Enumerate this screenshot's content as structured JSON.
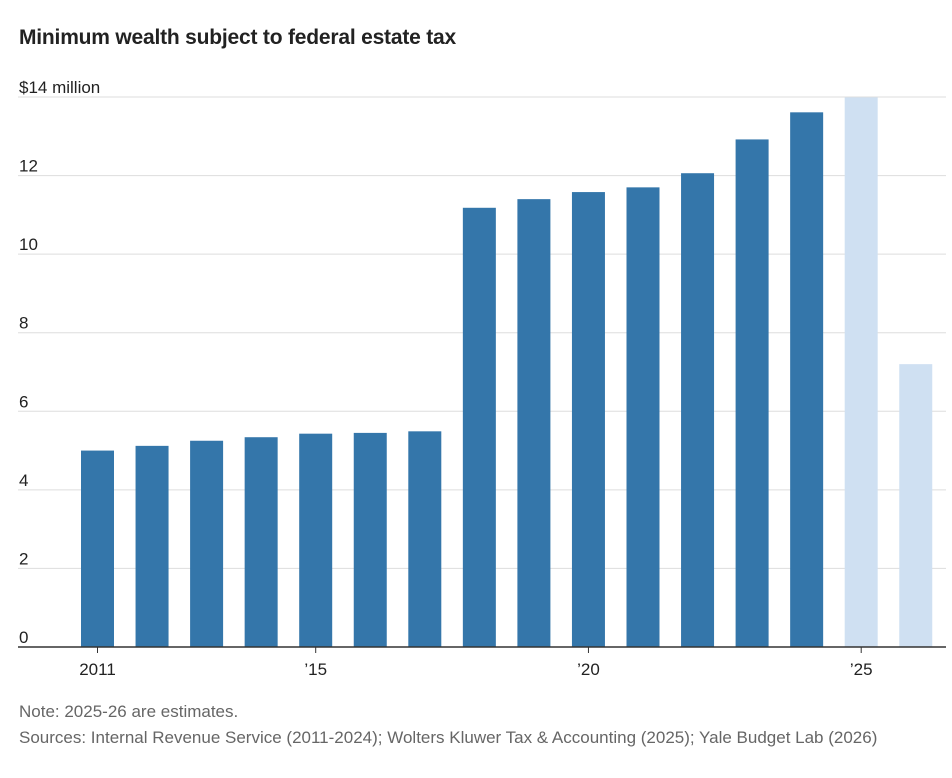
{
  "chart_data": {
    "type": "bar",
    "title": "Minimum wealth subject to federal estate tax",
    "ylabel": "",
    "xlabel": "",
    "ylim": [
      0,
      14
    ],
    "yticks": [
      {
        "value": 14,
        "label": "$14 million"
      },
      {
        "value": 12,
        "label": "12"
      },
      {
        "value": 10,
        "label": "10"
      },
      {
        "value": 8,
        "label": "8"
      },
      {
        "value": 6,
        "label": "6"
      },
      {
        "value": 4,
        "label": "4"
      },
      {
        "value": 2,
        "label": "2"
      },
      {
        "value": 0,
        "label": "0"
      }
    ],
    "xticks": [
      {
        "year": 2011,
        "label": "2011"
      },
      {
        "year": 2015,
        "label": "’15"
      },
      {
        "year": 2020,
        "label": "’20"
      },
      {
        "year": 2025,
        "label": "’25"
      }
    ],
    "categories": [
      2011,
      2012,
      2013,
      2014,
      2015,
      2016,
      2017,
      2018,
      2019,
      2020,
      2021,
      2022,
      2023,
      2024,
      2025,
      2026
    ],
    "values": [
      5.0,
      5.12,
      5.25,
      5.34,
      5.43,
      5.45,
      5.49,
      11.18,
      11.4,
      11.58,
      11.7,
      12.06,
      12.92,
      13.61,
      13.99,
      7.2
    ],
    "estimated": [
      false,
      false,
      false,
      false,
      false,
      false,
      false,
      false,
      false,
      false,
      false,
      false,
      false,
      false,
      true,
      true
    ],
    "colors": {
      "actual": "#3476aa",
      "estimate": "#cfe0f2",
      "grid": "#dddddd",
      "axis": "#333333",
      "text": "#222222",
      "muted": "#666666"
    }
  },
  "footer": {
    "note": "Note: 2025-26 are estimates.",
    "sources": "Sources: Internal Revenue Service (2011-2024); Wolters Kluwer Tax & Accounting (2025); Yale Budget Lab (2026)"
  }
}
